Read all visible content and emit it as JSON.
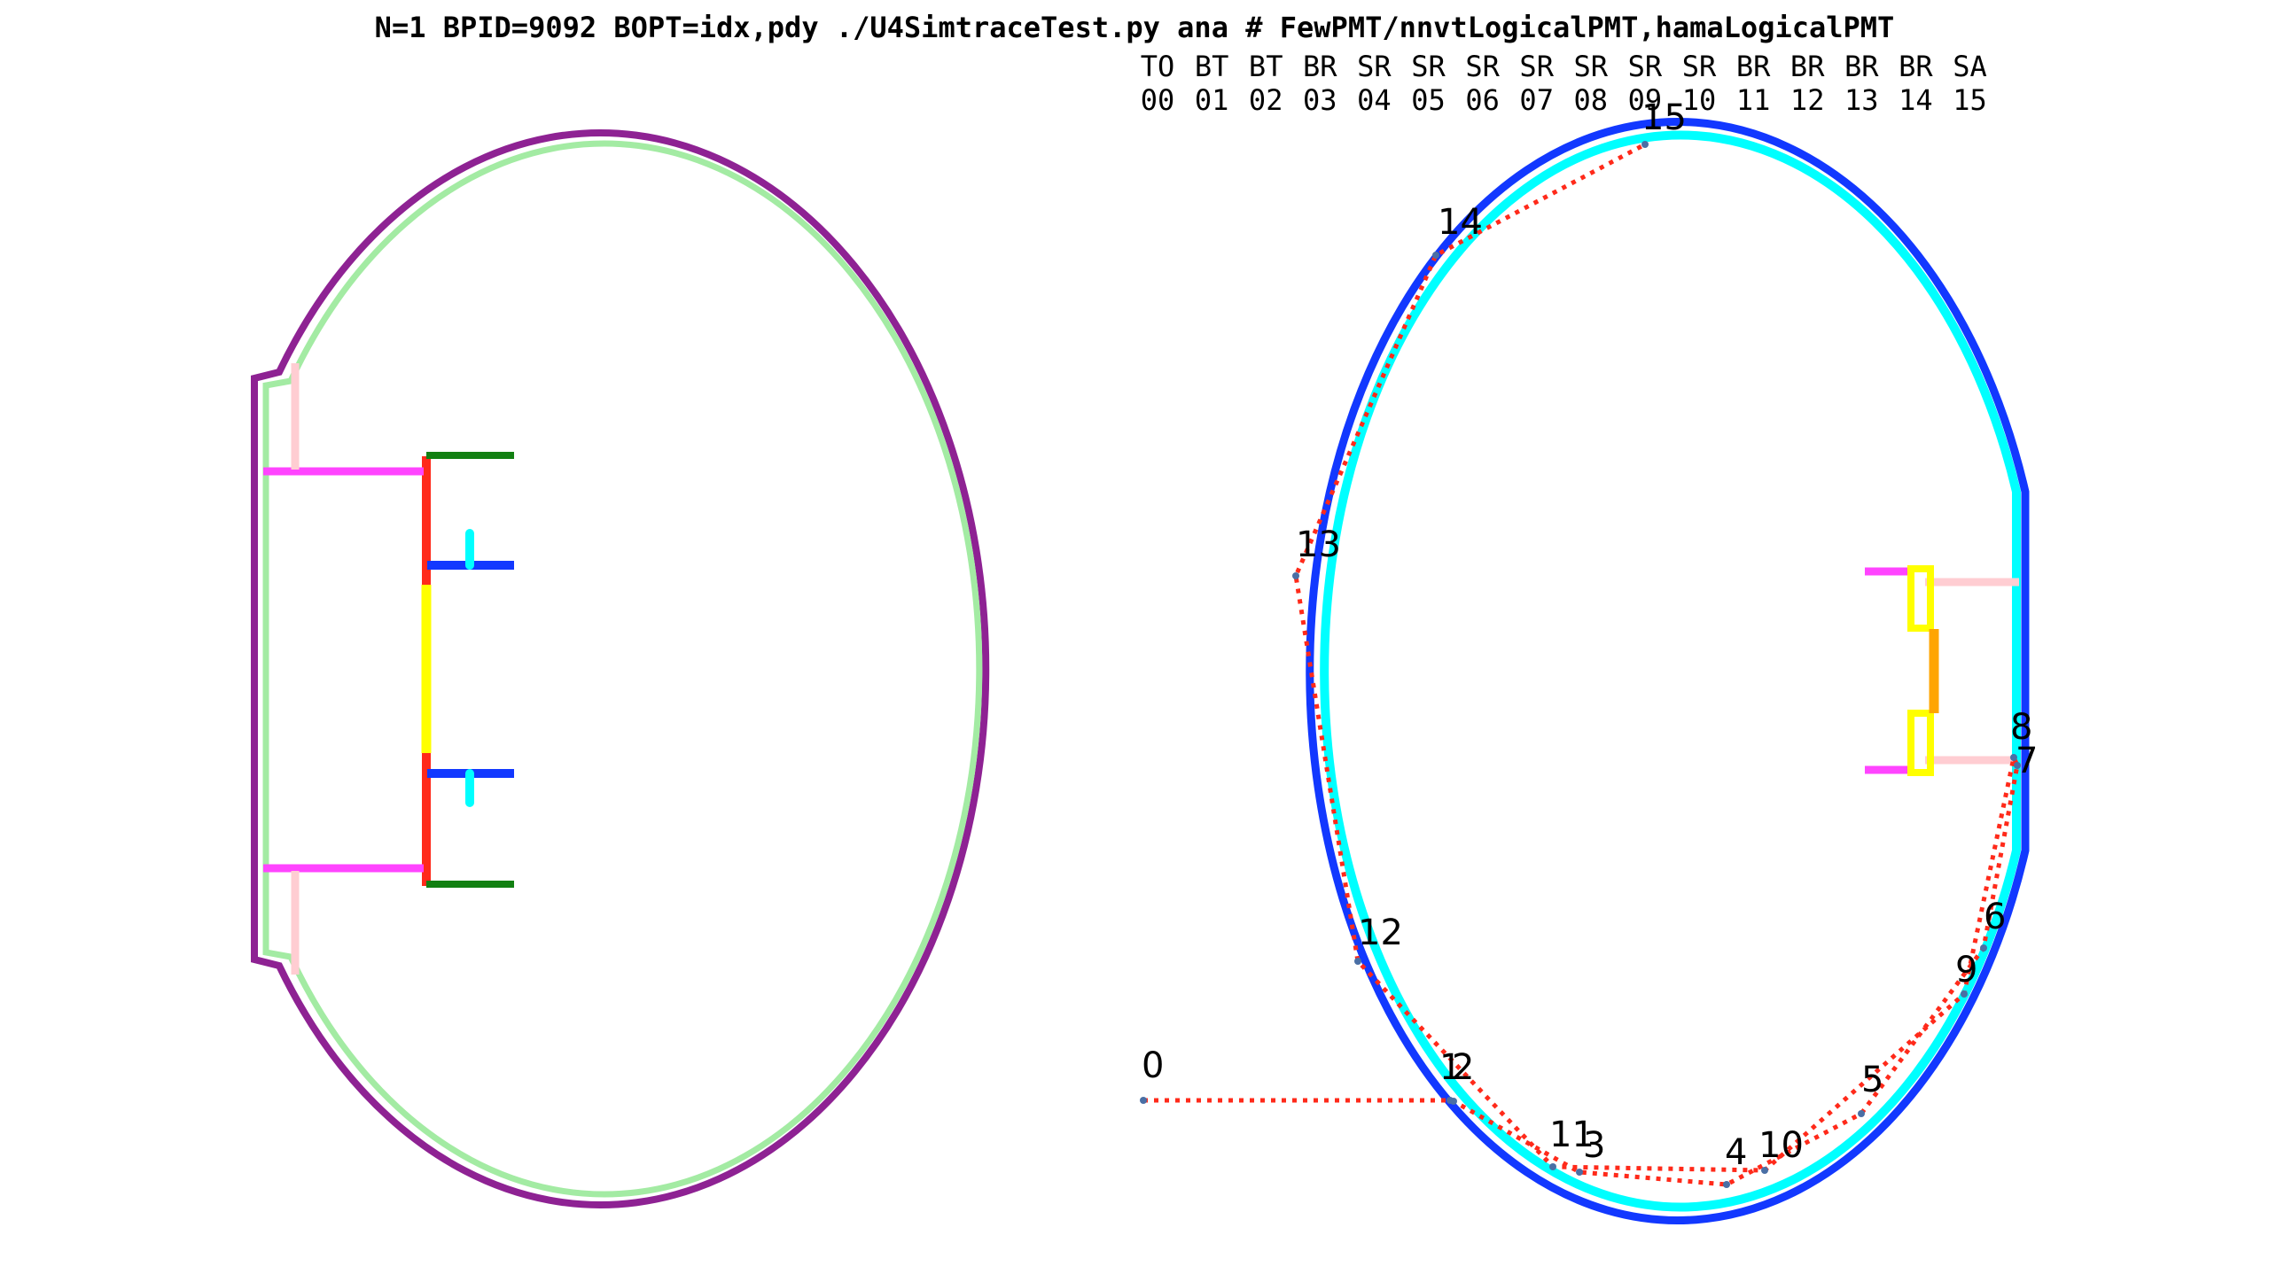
{
  "title": "N=1 BPID=9092 BOPT=idx,pdy  ./U4SimtraceTest.py ana   # FewPMT/nnvtLogicalPMT,hamaLogicalPMT",
  "history_columns": [
    {
      "flag": "TO",
      "index": "00"
    },
    {
      "flag": "BT",
      "index": "01"
    },
    {
      "flag": "BT",
      "index": "02"
    },
    {
      "flag": "BR",
      "index": "03"
    },
    {
      "flag": "SR",
      "index": "04"
    },
    {
      "flag": "SR",
      "index": "05"
    },
    {
      "flag": "SR",
      "index": "06"
    },
    {
      "flag": "SR",
      "index": "07"
    },
    {
      "flag": "SR",
      "index": "08"
    },
    {
      "flag": "SR",
      "index": "09"
    },
    {
      "flag": "SR",
      "index": "10"
    },
    {
      "flag": "BR",
      "index": "11"
    },
    {
      "flag": "BR",
      "index": "12"
    },
    {
      "flag": "BR",
      "index": "13"
    },
    {
      "flag": "BR",
      "index": "14"
    },
    {
      "flag": "SA",
      "index": "15"
    }
  ],
  "colors": {
    "nnvt_outer": "#8e2293",
    "nnvt_inner": "#a3eba3",
    "nnvt_cathode_support": "#ff2a1a",
    "nnvt_cathode": "#ffff00",
    "nnvt_plate": "#128012",
    "nnvt_shield": "#1238ff",
    "nnvt_shield_tab": "#00ffff",
    "mask_bar": "#ff44ff",
    "mask_post": "#ffcdd2",
    "hama_outer": "#1238ff",
    "hama_inner": "#00ffff",
    "hama_dynode_frame": "#ffff00",
    "hama_dynode_core": "#ffa500",
    "photon_path": "#ff2a1a",
    "photon_point": "#4a6fa5"
  },
  "photon_points": [
    {
      "label": "0",
      "side": "left",
      "dy": 0
    },
    {
      "label": "1",
      "side": "left",
      "dy": 0
    },
    {
      "label": "2",
      "side": "left",
      "dy": 0
    },
    {
      "label": "3",
      "side": "left",
      "dy": 0
    },
    {
      "label": "4",
      "side": "left",
      "dy": 0
    },
    {
      "label": "5",
      "side": "left",
      "dy": 0
    },
    {
      "label": "6",
      "side": "left",
      "dy": 0
    },
    {
      "label": "7",
      "side": "right",
      "dy": 0
    },
    {
      "label": "8",
      "side": "right",
      "dy": 0
    },
    {
      "label": "9",
      "side": "left",
      "dy": 0
    },
    {
      "label": "10",
      "side": "right",
      "dy": 0
    },
    {
      "label": "11",
      "side": "left",
      "dy": 0
    },
    {
      "label": "12",
      "side": "right",
      "dy": 0
    },
    {
      "label": "13",
      "side": "left",
      "dy": 0
    },
    {
      "label": "14",
      "side": "left",
      "dy": 0
    },
    {
      "label": "15",
      "side": "left",
      "dy": 0
    }
  ]
}
